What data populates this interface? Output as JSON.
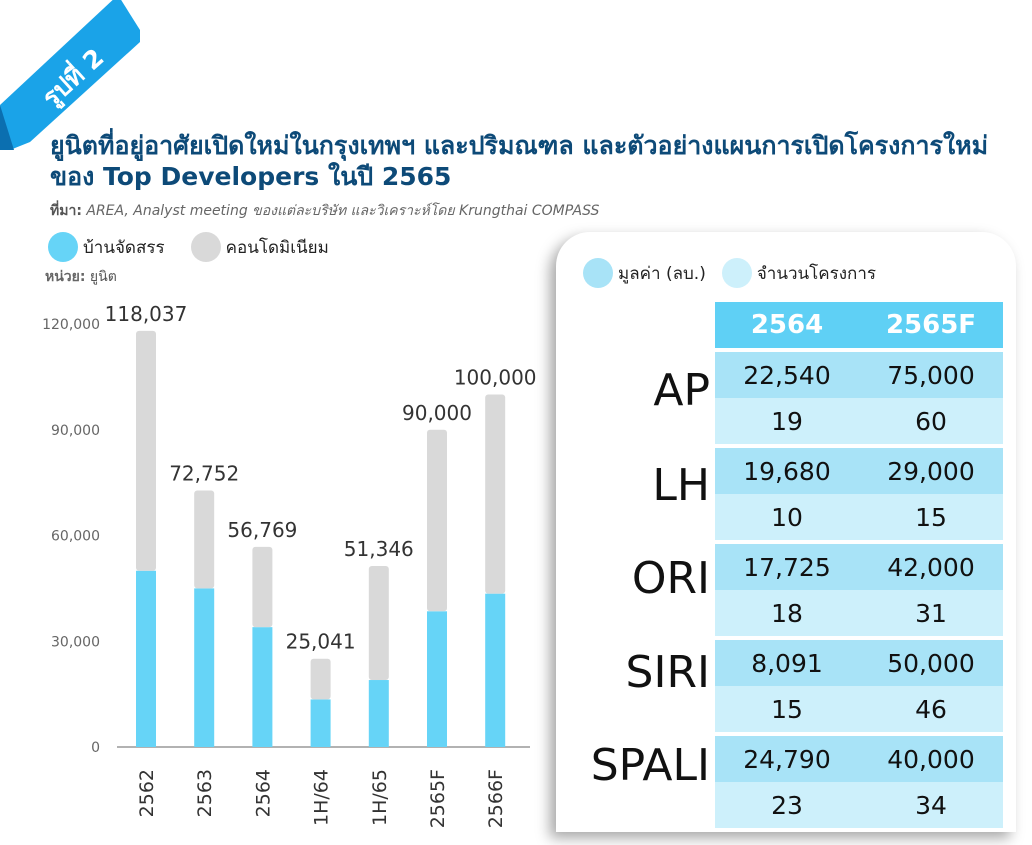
{
  "ribbon_label": "รูปที่ 2",
  "title": "ยูนิตที่อยู่อาศัยเปิดใหม่ในกรุงเทพฯ และปริมณฑล และตัวอย่างแผนการเปิดโครงการใหม่ของ Top Developers ในปี 2565",
  "source_prefix": "ที่มา:",
  "source_text": " AREA, Analyst meeting ของแต่ละบริษัท และวิเคราะห์โดย Krungthai COMPASS",
  "unit_prefix": "หน่วย:",
  "unit_text": " ยูนิต",
  "colors": {
    "house": "#66d4f7",
    "condo": "#d9d9d9",
    "ribbon": "#1aa3e8",
    "header": "#5fd0f5"
  },
  "chart_data": {
    "type": "bar",
    "stacked": true,
    "categories": [
      "2562",
      "2563",
      "2564",
      "1H/64",
      "1H/65",
      "2565F",
      "2566F"
    ],
    "series": [
      {
        "name": "บ้านจัดสรร",
        "values": [
          50000,
          45000,
          34000,
          13500,
          19000,
          38500,
          43500
        ]
      },
      {
        "name": "คอนโดมิเนียม",
        "values": [
          68037,
          27752,
          22769,
          11541,
          32346,
          51500,
          56500
        ]
      }
    ],
    "totals": [
      "118,037",
      "72,752",
      "56,769",
      "25,041",
      "51,346",
      "90,000",
      "100,000"
    ],
    "yticks": [
      "0",
      "30,000",
      "60,000",
      "90,000",
      "120,000"
    ],
    "ylim": [
      0,
      120000
    ],
    "legend_position": "top-left"
  },
  "table": {
    "legend": [
      "มูลค่า (ลบ.)",
      "จำนวนโครงการ"
    ],
    "headers": [
      "2564",
      "2565F"
    ],
    "developers": [
      {
        "name": "AP",
        "value": [
          "22,540",
          "75,000"
        ],
        "projects": [
          "19",
          "60"
        ]
      },
      {
        "name": "LH",
        "value": [
          "19,680",
          "29,000"
        ],
        "projects": [
          "10",
          "15"
        ]
      },
      {
        "name": "ORI",
        "value": [
          "17,725",
          "42,000"
        ],
        "projects": [
          "18",
          "31"
        ]
      },
      {
        "name": "SIRI",
        "value": [
          "8,091",
          "50,000"
        ],
        "projects": [
          "15",
          "46"
        ]
      },
      {
        "name": "SPALI",
        "value": [
          "24,790",
          "40,000"
        ],
        "projects": [
          "23",
          "34"
        ]
      }
    ]
  }
}
